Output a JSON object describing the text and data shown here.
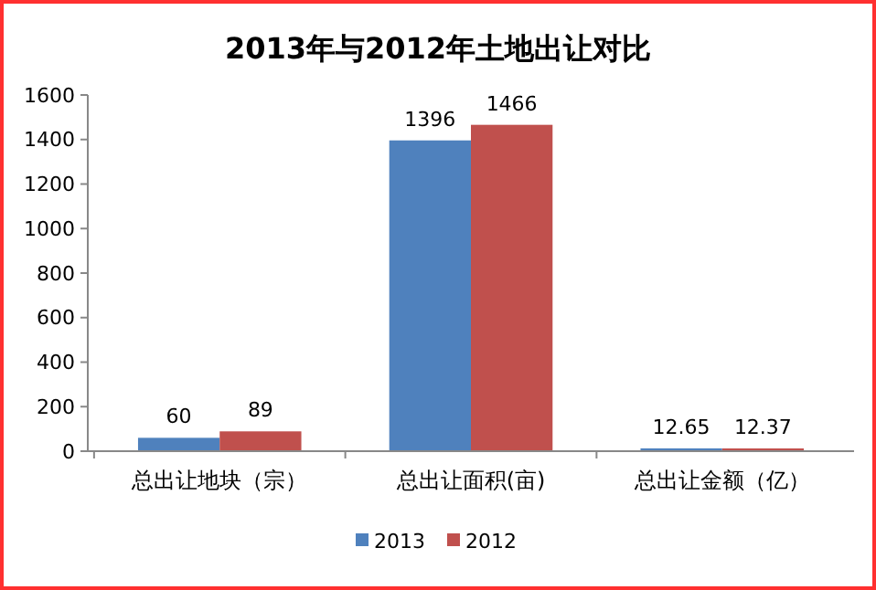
{
  "chart_data": {
    "type": "bar",
    "title": "2013年与2012年土地出让对比",
    "categories": [
      "总出让地块（宗）",
      "总出让面积(亩)",
      "总出让金额（亿）"
    ],
    "series": [
      {
        "name": "2013",
        "color": "#4f81bd",
        "values": [
          60,
          1396,
          12.65
        ]
      },
      {
        "name": "2012",
        "color": "#c0504d",
        "values": [
          89,
          1466,
          12.37
        ]
      }
    ],
    "ylim": [
      0,
      1600
    ],
    "yticks": [
      0,
      200,
      400,
      600,
      800,
      1000,
      1200,
      1400,
      1600
    ],
    "data_labels": true,
    "legend": "bottom",
    "grid": false
  }
}
